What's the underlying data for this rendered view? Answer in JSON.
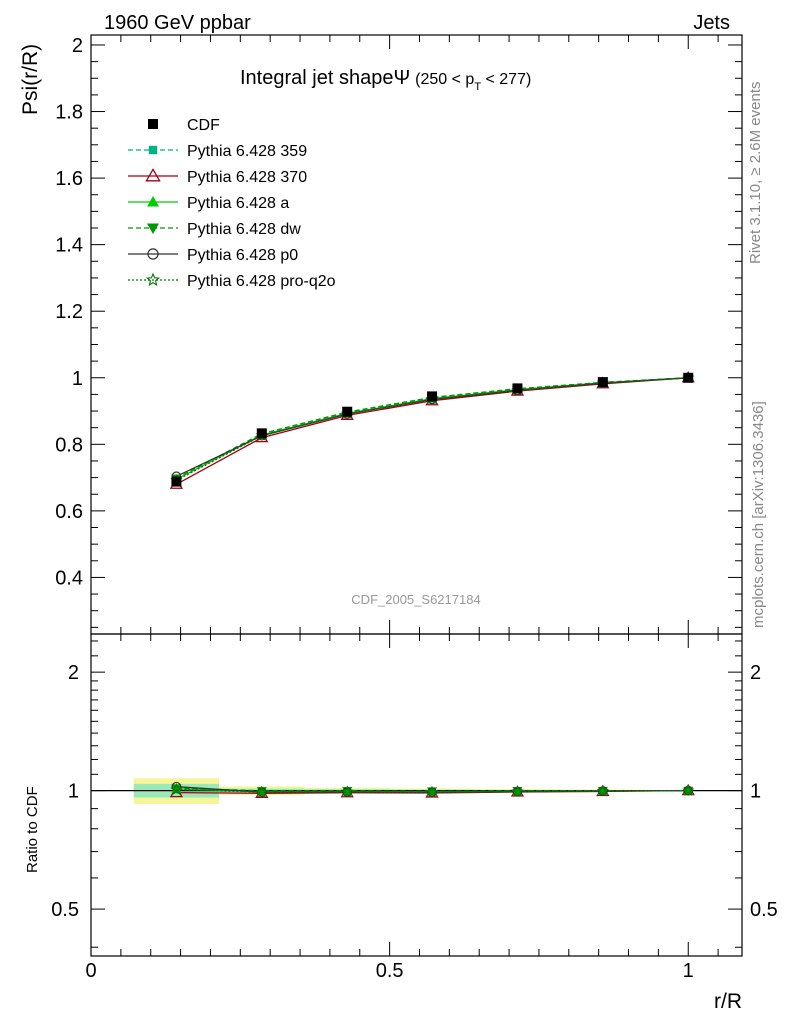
{
  "header": {
    "left": "1960 GeV ppbar",
    "right": "Jets"
  },
  "side": {
    "rivet": "Rivet 3.1.10, ≥ 2.6M events",
    "mcplots": "mcplots.cern.ch [arXiv:1306.3436]"
  },
  "chart_data": {
    "type": "line",
    "title": "Integral jet shapeΨ",
    "title_suffix": "(250 < p",
    "title_sub": "T",
    "title_end": " < 277)",
    "ylabel": "Psi(r/R)",
    "xlabel": "r/R",
    "ratio_ylabel": "Ratio to CDF",
    "watermark": "CDF_2005_S6217184",
    "xlim": [
      0,
      1.09
    ],
    "ylim": [
      0.23,
      2.03
    ],
    "ratio_ylim": [
      0.38,
      2.5
    ],
    "ratio_log": true,
    "x_ticks": [
      "0",
      "0.5",
      "1"
    ],
    "y_ticks": [
      "0.4",
      "0.6",
      "0.8",
      "1",
      "1.2",
      "1.4",
      "1.6",
      "1.8",
      "2"
    ],
    "ratio_ticks": [
      "0.5",
      "1",
      "2"
    ],
    "x": [
      0.143,
      0.286,
      0.429,
      0.571,
      0.714,
      0.857,
      1.0
    ],
    "reference": {
      "name": "CDF",
      "values": [
        0.688,
        0.833,
        0.898,
        0.944,
        0.968,
        0.987,
        1.0
      ],
      "band_inner": [
        0.04,
        0.012,
        0.008,
        0.006,
        0.004,
        0.003,
        0.0
      ],
      "band_outer": [
        0.075,
        0.025,
        0.017,
        0.012,
        0.009,
        0.006,
        0.0
      ]
    },
    "series": [
      {
        "name": "Pythia 6.428 359",
        "color": "#00b386",
        "dash": "5,3",
        "marker": "square-small",
        "values": [
          0.696,
          0.827,
          0.896,
          0.94,
          0.966,
          0.986,
          1.0
        ]
      },
      {
        "name": "Pythia 6.428 370",
        "color": "#a3001a",
        "dash": "",
        "marker": "triangle-open",
        "values": [
          0.68,
          0.82,
          0.887,
          0.931,
          0.96,
          0.982,
          1.0
        ]
      },
      {
        "name": "Pythia 6.428 a",
        "color": "#00cc00",
        "dash": "",
        "marker": "triangle",
        "values": [
          0.695,
          0.828,
          0.893,
          0.937,
          0.964,
          0.985,
          1.0
        ]
      },
      {
        "name": "Pythia 6.428 dw",
        "color": "#009900",
        "dash": "5,3",
        "marker": "triangle-down",
        "values": [
          0.698,
          0.832,
          0.897,
          0.941,
          0.967,
          0.986,
          1.0
        ]
      },
      {
        "name": "Pythia 6.428 p0",
        "color": "#333333",
        "dash": "",
        "marker": "circle-open",
        "values": [
          0.704,
          0.826,
          0.891,
          0.935,
          0.962,
          0.984,
          1.0
        ]
      },
      {
        "name": "Pythia 6.428 pro-q2o",
        "color": "#007a00",
        "dash": "2,2",
        "marker": "star",
        "values": [
          0.692,
          0.826,
          0.892,
          0.936,
          0.963,
          0.985,
          1.0
        ]
      }
    ]
  }
}
